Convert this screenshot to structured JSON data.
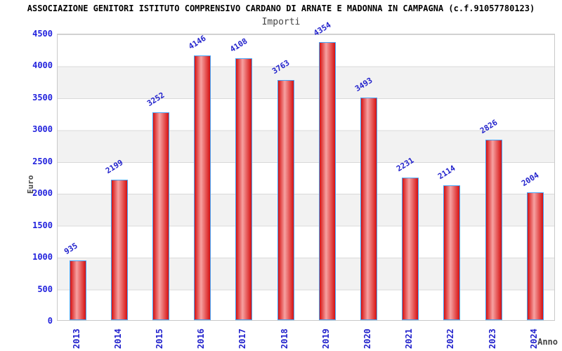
{
  "header": {
    "title": "ASSOCIAZIONE GENITORI ISTITUTO COMPRENSIVO CARDANO DI ARNATE E MADONNA IN CAMPAGNA (c.f.91057780123)",
    "subtitle": "Importi"
  },
  "chart_data": {
    "type": "bar",
    "title": "Importi",
    "xlabel": "Anno",
    "ylabel": "Euro",
    "categories": [
      "2013",
      "2014",
      "2015",
      "2016",
      "2017",
      "2018",
      "2019",
      "2020",
      "2021",
      "2022",
      "2023",
      "2024"
    ],
    "values": [
      935,
      2199,
      3252,
      4146,
      4108,
      3763,
      4354,
      3493,
      2231,
      2114,
      2826,
      2004
    ],
    "ylim": [
      0,
      4500
    ],
    "ytick_step": 500,
    "yticks": [
      0,
      500,
      1000,
      1500,
      2000,
      2500,
      3000,
      3500,
      4000,
      4500
    ],
    "grid": "horizontal-stripes-and-lines",
    "legend": "none",
    "colors": {
      "bar_fill_edge": "#d61111",
      "bar_fill_center": "#f6a1a1",
      "bar_border": "#46a2f5",
      "value_label": "#2222cc",
      "tick_label": "#2222dd",
      "axis_title": "#444444",
      "stripe_gray": "#f2f2f2",
      "gridline": "#d9d9d9",
      "plot_border": "#c9c9c9",
      "title_color": "#000000",
      "subtitle_color": "#444444"
    }
  }
}
